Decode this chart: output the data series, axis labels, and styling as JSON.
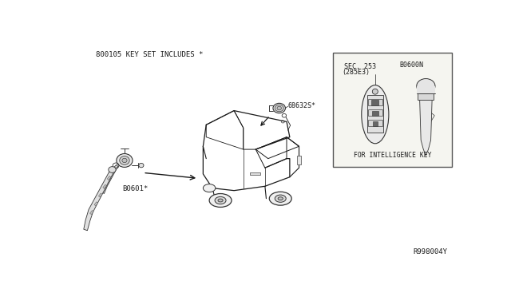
{
  "bg": "#ffffff",
  "tc": "#1a1a1a",
  "lc": "#1a1a1a",
  "title": "800105 KEY SET INCLUDES *",
  "part_no": "R998004Y",
  "lbl_68632s": "68632S*",
  "lbl_b0601": "B0601*",
  "lbl_b0600n": "B0600N",
  "lbl_sec253": "SEC. 253",
  "lbl_285e3": "(285E3)",
  "lbl_intel": "FOR INTELLIGENCE KEY"
}
